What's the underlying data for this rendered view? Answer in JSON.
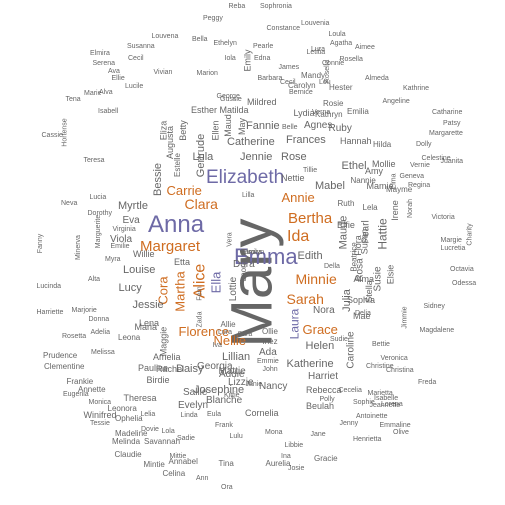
{
  "palette": {
    "purple": "#6e6aa6",
    "orange": "#cf6d21",
    "teal": "#1e9a79",
    "gray": "#666666"
  },
  "words": [
    {
      "text": "Mary",
      "color": "gray"
    },
    {
      "text": "Anna",
      "color": "purple"
    },
    {
      "text": "Emma",
      "color": "purple"
    },
    {
      "text": "Elizabeth",
      "color": "purple"
    },
    {
      "text": "Margaret",
      "color": "orange"
    },
    {
      "text": "Minnie",
      "color": "orange"
    },
    {
      "text": "Ida",
      "color": "orange"
    },
    {
      "text": "Sarah",
      "color": "orange"
    },
    {
      "text": "Bertha",
      "color": "orange"
    },
    {
      "text": "Alice",
      "color": "orange"
    },
    {
      "text": "Clara",
      "color": "orange"
    },
    {
      "text": "Annie",
      "color": "orange"
    },
    {
      "text": "Carrie",
      "color": "orange"
    },
    {
      "text": "Florence",
      "color": "orange"
    },
    {
      "text": "Grace",
      "color": "orange"
    },
    {
      "text": "Nellie",
      "color": "orange"
    },
    {
      "text": "Martha",
      "color": "orange"
    },
    {
      "text": "Cora",
      "color": "orange"
    },
    {
      "text": "Ella",
      "color": "purple"
    },
    {
      "text": "Laura",
      "color": "purple"
    },
    {
      "text": "Hattie",
      "color": "gray"
    },
    {
      "text": "Louise",
      "color": "gray"
    },
    {
      "text": "Lucy",
      "color": "gray"
    },
    {
      "text": "Myrtle",
      "color": "gray"
    },
    {
      "text": "Jessie",
      "color": "gray"
    },
    {
      "text": "Bessie",
      "color": "gray"
    },
    {
      "text": "Gertrude",
      "color": "gray"
    },
    {
      "text": "Julia",
      "color": "gray"
    },
    {
      "text": "Edith",
      "color": "gray"
    },
    {
      "text": "Mabel",
      "color": "gray"
    },
    {
      "text": "Ethel",
      "color": "gray"
    },
    {
      "text": "Helen",
      "color": "gray"
    },
    {
      "text": "Lillian",
      "color": "gray"
    },
    {
      "text": "Josephine",
      "color": "gray"
    },
    {
      "text": "Rose",
      "color": "gray"
    },
    {
      "text": "Jennie",
      "color": "gray"
    },
    {
      "text": "Catherine",
      "color": "gray"
    },
    {
      "text": "Frances",
      "color": "gray"
    },
    {
      "text": "Fannie",
      "color": "gray"
    },
    {
      "text": "Lula",
      "color": "gray"
    },
    {
      "text": "Agnes",
      "color": "gray"
    },
    {
      "text": "Katherine",
      "color": "gray"
    },
    {
      "text": "Mattie",
      "color": "gray"
    },
    {
      "text": "Daisy",
      "color": "gray"
    },
    {
      "text": "Maude",
      "color": "gray"
    },
    {
      "text": "Eva",
      "color": "gray"
    },
    {
      "text": "Viola",
      "color": "gray"
    },
    {
      "text": "Susie",
      "color": "gray"
    },
    {
      "text": "Lottie",
      "color": "gray"
    },
    {
      "text": "Nora",
      "color": "gray"
    },
    {
      "text": "Blanche",
      "color": "gray"
    },
    {
      "text": "Ada",
      "color": "gray"
    },
    {
      "text": "Dora",
      "color": "gray"
    },
    {
      "text": "Addie",
      "color": "gray"
    },
    {
      "text": "Pearl",
      "color": "gray"
    },
    {
      "text": "Rosa",
      "color": "gray"
    },
    {
      "text": "Caroline",
      "color": "gray"
    },
    {
      "text": "Lizzie",
      "color": "gray"
    },
    {
      "text": "Nancy",
      "color": "gray"
    },
    {
      "text": "Harriet",
      "color": "gray"
    },
    {
      "text": "Sallie",
      "color": "gray"
    },
    {
      "text": "Evelyn",
      "color": "gray"
    },
    {
      "text": "Georgia",
      "color": "gray"
    },
    {
      "text": "Esther",
      "color": "gray"
    },
    {
      "text": "Etta",
      "color": "gray"
    },
    {
      "text": "Lena",
      "color": "gray"
    },
    {
      "text": "Maggie",
      "color": "gray"
    },
    {
      "text": "Lydia",
      "color": "gray"
    },
    {
      "text": "Amelia",
      "color": "gray"
    },
    {
      "text": "Ruby",
      "color": "gray"
    },
    {
      "text": "Amy",
      "color": "gray"
    },
    {
      "text": "Flora",
      "color": "gray"
    },
    {
      "text": "Elsie",
      "color": "gray"
    },
    {
      "text": "Emily",
      "color": "gray"
    },
    {
      "text": "Effie",
      "color": "gray"
    },
    {
      "text": "Irene",
      "color": "gray"
    },
    {
      "text": "Alma",
      "color": "gray"
    },
    {
      "text": "Stella",
      "color": "gray"
    },
    {
      "text": "Susan",
      "color": "gray"
    },
    {
      "text": "Nettie",
      "color": "gray"
    },
    {
      "text": "Willie",
      "color": "gray"
    },
    {
      "text": "Eliza",
      "color": "gray"
    },
    {
      "text": "Augusta",
      "color": "gray"
    },
    {
      "text": "Betty",
      "color": "gray"
    },
    {
      "text": "Matilda",
      "color": "gray"
    },
    {
      "text": "Mildred",
      "color": "gray"
    },
    {
      "text": "Maud",
      "color": "gray"
    },
    {
      "text": "Ellen",
      "color": "gray"
    },
    {
      "text": "May",
      "color": "gray"
    },
    {
      "text": "Hannah",
      "color": "gray"
    },
    {
      "text": "Mamie",
      "color": "gray"
    },
    {
      "text": "Sophia",
      "color": "gray"
    },
    {
      "text": "Rachel",
      "color": "gray"
    },
    {
      "text": "Maria",
      "color": "gray"
    },
    {
      "text": "Pauline",
      "color": "gray"
    },
    {
      "text": "Birdie",
      "color": "gray"
    },
    {
      "text": "Theresa",
      "color": "gray"
    },
    {
      "text": "Rebecca",
      "color": "gray"
    },
    {
      "text": "Beulah",
      "color": "gray"
    },
    {
      "text": "Cornelia",
      "color": "gray"
    },
    {
      "text": "Mae",
      "color": "gray"
    },
    {
      "text": "Mollie",
      "color": "gray"
    },
    {
      "text": "Mayme",
      "color": "gray"
    },
    {
      "text": "Nannie",
      "color": "gray"
    },
    {
      "text": "Hester",
      "color": "gray"
    },
    {
      "text": "Rosie",
      "color": "gray"
    },
    {
      "text": "Kathryn",
      "color": "gray"
    },
    {
      "text": "Carolyn",
      "color": "gray"
    },
    {
      "text": "Mandy",
      "color": "gray"
    },
    {
      "text": "Ruth",
      "color": "gray"
    },
    {
      "text": "Leona",
      "color": "gray"
    },
    {
      "text": "Winifred",
      "color": "gray"
    },
    {
      "text": "Prudence",
      "color": "gray"
    },
    {
      "text": "Clementine",
      "color": "gray"
    },
    {
      "text": "Frankie",
      "color": "gray"
    },
    {
      "text": "Annette",
      "color": "gray"
    },
    {
      "text": "Ophelia",
      "color": "gray"
    },
    {
      "text": "Leonora",
      "color": "gray"
    },
    {
      "text": "Madeline",
      "color": "gray"
    },
    {
      "text": "Melinda",
      "color": "gray"
    },
    {
      "text": "Savannah",
      "color": "gray"
    },
    {
      "text": "Claudie",
      "color": "gray"
    },
    {
      "text": "Mintie",
      "color": "gray"
    },
    {
      "text": "Annabel",
      "color": "gray"
    },
    {
      "text": "Celina",
      "color": "gray"
    },
    {
      "text": "Tina",
      "color": "gray"
    },
    {
      "text": "Aurelia",
      "color": "gray"
    },
    {
      "text": "Gracie",
      "color": "gray"
    },
    {
      "text": "Reba",
      "color": "gray"
    },
    {
      "text": "Sophronia",
      "color": "gray"
    },
    {
      "text": "Peggy",
      "color": "gray"
    },
    {
      "text": "Constance",
      "color": "gray"
    },
    {
      "text": "Louvenia",
      "color": "gray"
    },
    {
      "text": "Loula",
      "color": "gray"
    },
    {
      "text": "Agatha",
      "color": "gray"
    },
    {
      "text": "Aimee",
      "color": "gray"
    },
    {
      "text": "Elmira",
      "color": "gray"
    },
    {
      "text": "Serena",
      "color": "gray"
    },
    {
      "text": "Louvena",
      "color": "gray"
    },
    {
      "text": "Bella",
      "color": "gray"
    },
    {
      "text": "Ethelyn",
      "color": "gray"
    },
    {
      "text": "Pearle",
      "color": "gray"
    },
    {
      "text": "Susanna",
      "color": "gray"
    },
    {
      "text": "Letitia",
      "color": "gray"
    },
    {
      "text": "Roselia",
      "color": "gray"
    },
    {
      "text": "Rosella",
      "color": "gray"
    },
    {
      "text": "Cecil",
      "color": "gray"
    },
    {
      "text": "Ellie",
      "color": "gray"
    },
    {
      "text": "Vivian",
      "color": "gray"
    },
    {
      "text": "Ava",
      "color": "gray"
    },
    {
      "text": "Lucile",
      "color": "gray"
    },
    {
      "text": "Alva",
      "color": "gray"
    },
    {
      "text": "Marie",
      "color": "gray"
    },
    {
      "text": "Isabell",
      "color": "gray"
    },
    {
      "text": "Connie",
      "color": "gray"
    },
    {
      "text": "Lou",
      "color": "gray"
    },
    {
      "text": "Almeda",
      "color": "gray"
    },
    {
      "text": "Angeline",
      "color": "gray"
    },
    {
      "text": "Kathrine",
      "color": "gray"
    },
    {
      "text": "Catharine",
      "color": "gray"
    },
    {
      "text": "Margarette",
      "color": "gray"
    },
    {
      "text": "Patsy",
      "color": "gray"
    },
    {
      "text": "Juanita",
      "color": "gray"
    },
    {
      "text": "Dolly",
      "color": "gray"
    },
    {
      "text": "Celestine",
      "color": "gray"
    },
    {
      "text": "Regina",
      "color": "gray"
    },
    {
      "text": "Geneva",
      "color": "gray"
    },
    {
      "text": "Victoria",
      "color": "gray"
    },
    {
      "text": "Margie",
      "color": "gray"
    },
    {
      "text": "Lucretia",
      "color": "gray"
    },
    {
      "text": "Charity",
      "color": "gray"
    },
    {
      "text": "Octavia",
      "color": "gray"
    },
    {
      "text": "Odessa",
      "color": "gray"
    },
    {
      "text": "Sidney",
      "color": "gray"
    },
    {
      "text": "Jimmie",
      "color": "gray"
    },
    {
      "text": "Magdalene",
      "color": "gray"
    },
    {
      "text": "Veronica",
      "color": "gray"
    },
    {
      "text": "Christina",
      "color": "gray"
    },
    {
      "text": "Freda",
      "color": "gray"
    },
    {
      "text": "Tena",
      "color": "gray"
    },
    {
      "text": "Cassie",
      "color": "gray"
    },
    {
      "text": "Hortense",
      "color": "gray"
    },
    {
      "text": "Teresa",
      "color": "gray"
    },
    {
      "text": "Neva",
      "color": "gray"
    },
    {
      "text": "Lucia",
      "color": "gray"
    },
    {
      "text": "Dorothy",
      "color": "gray"
    },
    {
      "text": "Marguerite",
      "color": "gray"
    },
    {
      "text": "Emilie",
      "color": "gray"
    },
    {
      "text": "Myra",
      "color": "gray"
    },
    {
      "text": "Fanny",
      "color": "gray"
    },
    {
      "text": "Minerva",
      "color": "gray"
    },
    {
      "text": "Lucinda",
      "color": "gray"
    },
    {
      "text": "Harriette",
      "color": "gray"
    },
    {
      "text": "Marjorie",
      "color": "gray"
    },
    {
      "text": "Donna",
      "color": "gray"
    },
    {
      "text": "Adelia",
      "color": "gray"
    },
    {
      "text": "Rosetta",
      "color": "gray"
    },
    {
      "text": "Melissa",
      "color": "gray"
    },
    {
      "text": "Eugenia",
      "color": "gray"
    },
    {
      "text": "Monica",
      "color": "gray"
    },
    {
      "text": "Tessie",
      "color": "gray"
    },
    {
      "text": "Dovie",
      "color": "gray"
    },
    {
      "text": "Frank",
      "color": "gray"
    },
    {
      "text": "Mona",
      "color": "gray"
    },
    {
      "text": "Libbie",
      "color": "gray"
    },
    {
      "text": "Christine",
      "color": "gray"
    },
    {
      "text": "Marietta",
      "color": "gray"
    },
    {
      "text": "Jeannette",
      "color": "gray"
    },
    {
      "text": "Jenny",
      "color": "gray"
    },
    {
      "text": "Antoinette",
      "color": "gray"
    },
    {
      "text": "Henrietta",
      "color": "gray"
    },
    {
      "text": "Emmaline",
      "color": "gray"
    },
    {
      "text": "Olive",
      "color": "gray"
    },
    {
      "text": "Virginia",
      "color": "gray"
    },
    {
      "text": "Estelle",
      "color": "gray"
    },
    {
      "text": "Beatrice",
      "color": "gray"
    },
    {
      "text": "Lela",
      "color": "gray"
    },
    {
      "text": "Hilda",
      "color": "gray"
    },
    {
      "text": "Emilia",
      "color": "gray"
    },
    {
      "text": "Ollie",
      "color": "gray"
    },
    {
      "text": "Inez",
      "color": "gray"
    },
    {
      "text": "Zada",
      "color": "gray"
    },
    {
      "text": "Laora",
      "color": "gray"
    },
    {
      "text": "Lilla",
      "color": "gray"
    },
    {
      "text": "Allie",
      "color": "gray"
    },
    {
      "text": "Vera",
      "color": "gray"
    },
    {
      "text": "Norah",
      "color": "gray"
    },
    {
      "text": "Vernie",
      "color": "gray"
    },
    {
      "text": "Elma",
      "color": "gray"
    },
    {
      "text": "Cecelia",
      "color": "gray"
    },
    {
      "text": "Sudie",
      "color": "gray"
    },
    {
      "text": "Bettie",
      "color": "gray"
    },
    {
      "text": "Isabelle",
      "color": "gray"
    },
    {
      "text": "Lorena",
      "color": "gray"
    },
    {
      "text": "Gussie",
      "color": "gray"
    },
    {
      "text": "Marion",
      "color": "gray"
    },
    {
      "text": "Barbara",
      "color": "gray"
    },
    {
      "text": "James",
      "color": "gray"
    },
    {
      "text": "George",
      "color": "gray"
    },
    {
      "text": "John",
      "color": "gray"
    },
    {
      "text": "Emmie",
      "color": "gray"
    },
    {
      "text": "Janie",
      "color": "gray"
    },
    {
      "text": "Alta",
      "color": "gray"
    },
    {
      "text": "Polly",
      "color": "gray"
    },
    {
      "text": "Sophie",
      "color": "gray"
    },
    {
      "text": "Bernice",
      "color": "gray"
    },
    {
      "text": "Belle",
      "color": "gray"
    },
    {
      "text": "Verna",
      "color": "gray"
    },
    {
      "text": "Tillie",
      "color": "gray"
    },
    {
      "text": "Lura",
      "color": "gray"
    },
    {
      "text": "Sara",
      "color": "gray"
    },
    {
      "text": "Fern",
      "color": "gray"
    },
    {
      "text": "Iva",
      "color": "gray"
    },
    {
      "text": "Kittie",
      "color": "gray"
    },
    {
      "text": "Jane",
      "color": "gray"
    },
    {
      "text": "Delia",
      "color": "gray"
    },
    {
      "text": "Lelia",
      "color": "gray"
    },
    {
      "text": "Lola",
      "color": "gray"
    },
    {
      "text": "Lulu",
      "color": "gray"
    },
    {
      "text": "Della",
      "color": "gray"
    },
    {
      "text": "Linda",
      "color": "gray"
    },
    {
      "text": "Sadie",
      "color": "gray"
    },
    {
      "text": "Mittie",
      "color": "gray"
    },
    {
      "text": "Ina",
      "color": "gray"
    },
    {
      "text": "Josie",
      "color": "gray"
    },
    {
      "text": "Ora",
      "color": "gray"
    },
    {
      "text": "Ann",
      "color": "gray"
    },
    {
      "text": "Eula",
      "color": "gray"
    },
    {
      "text": "Lura",
      "color": "gray"
    },
    {
      "text": "Edna",
      "color": "gray"
    },
    {
      "text": "Iola",
      "color": "gray"
    },
    {
      "text": "Cecil",
      "color": "gray"
    },
    {
      "text": "Elmira",
      "color": "gray"
    },
    {
      "text": "Carolyn",
      "color": "gray"
    }
  ]
}
